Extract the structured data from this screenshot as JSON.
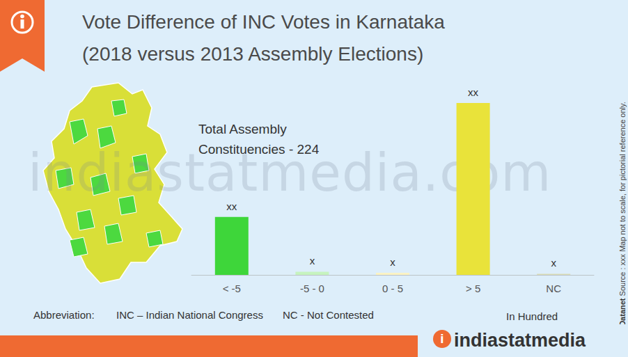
{
  "chart_data": {
    "type": "bar",
    "title": "Vote Difference of INC Votes in Karnataka",
    "subtitle": "(2018 versus 2013 Assembly Elections)",
    "annotation": [
      "Total Assembly",
      "Constituencies - 224"
    ],
    "categories": [
      "< -5",
      "-5 - 0",
      "0 - 5",
      "> 5",
      "NC"
    ],
    "values": [
      55,
      3,
      2,
      163,
      1
    ],
    "value_labels": [
      "xx",
      "x",
      "x",
      "xx",
      "x"
    ],
    "colors": [
      "#3ed63a",
      "#c6f3bf",
      "#fbf3c4",
      "#e9e33a",
      "#d9dcb6"
    ],
    "ylim": [
      0,
      163
    ],
    "data_labels": true,
    "tick_labels": "x",
    "grid": false
  },
  "page": {
    "abbreviation_heading": "Abbreviation:",
    "abbreviations": [
      "INC – Indian National Congress",
      "NC - Not Contested"
    ],
    "unit_note": "In Hundred",
    "credit": "© Datanet",
    "side_note": "Source : xxx   Map not to scale, for pictorial reference only.",
    "brand_icon": "i",
    "brand": "indiastatmedia",
    "watermark": "indiastatmedia.com"
  }
}
